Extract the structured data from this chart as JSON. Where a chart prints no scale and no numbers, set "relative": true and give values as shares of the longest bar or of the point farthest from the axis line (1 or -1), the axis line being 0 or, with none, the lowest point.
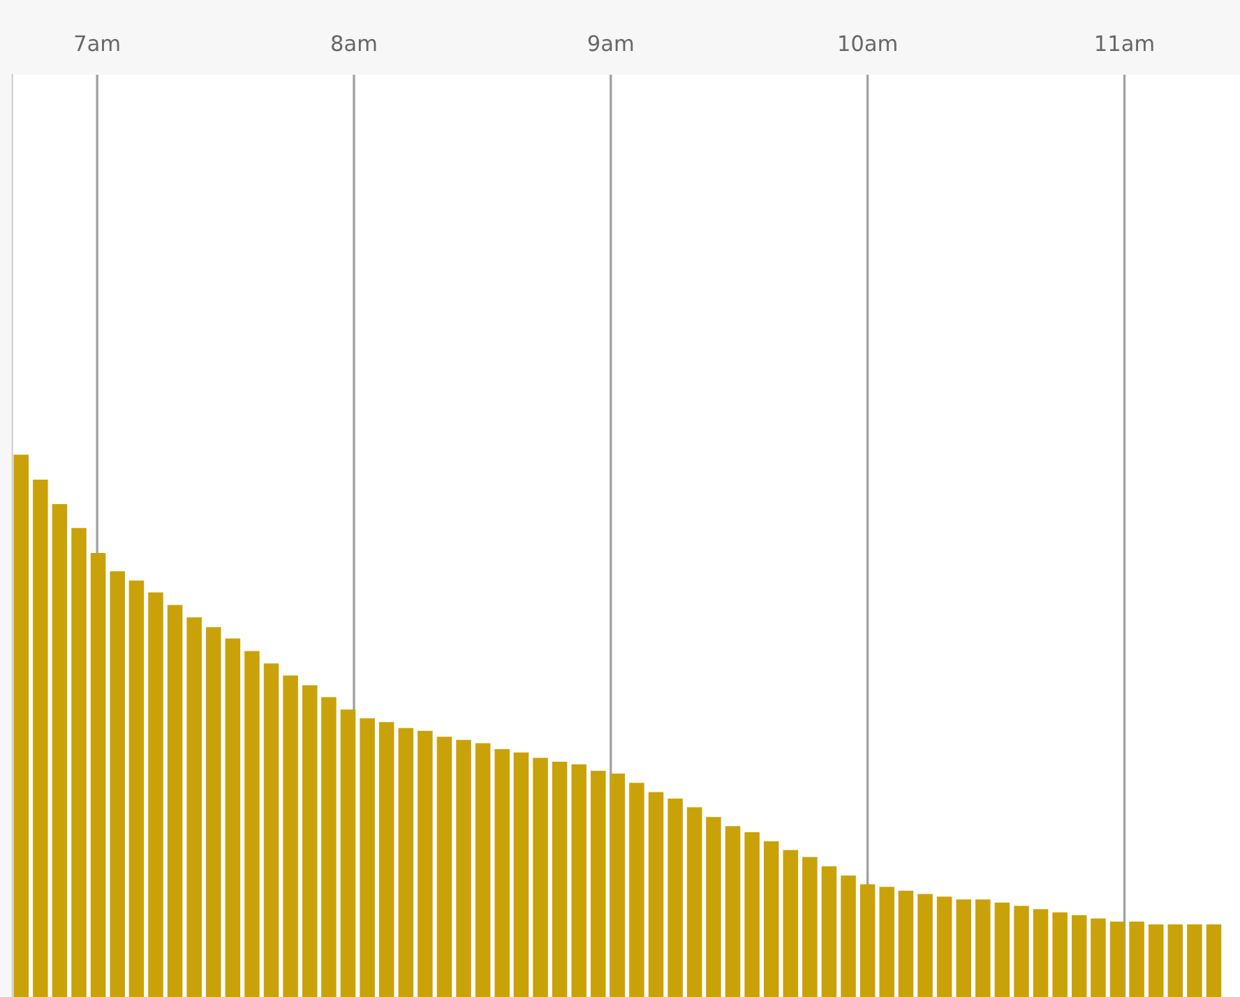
{
  "chart_data": {
    "type": "bar",
    "relative": true,
    "color": "#c9a20a",
    "x": [
      6.704,
      6.779,
      6.854,
      6.929,
      7.004,
      7.079,
      7.153,
      7.228,
      7.303,
      7.378,
      7.453,
      7.528,
      7.603,
      7.678,
      7.753,
      7.828,
      7.902,
      7.977,
      8.052,
      8.127,
      8.202,
      8.277,
      8.352,
      8.427,
      8.502,
      8.577,
      8.651,
      8.726,
      8.801,
      8.876,
      8.951,
      9.026,
      9.101,
      9.176,
      9.251,
      9.326,
      9.4,
      9.475,
      9.55,
      9.625,
      9.7,
      9.775,
      9.85,
      9.925,
      10.0,
      10.075,
      10.149,
      10.224,
      10.299,
      10.374,
      10.449,
      10.524,
      10.599,
      10.674,
      10.749,
      10.824,
      10.898,
      10.973,
      11.048,
      11.123,
      11.198,
      11.273,
      11.348
    ],
    "values": [
      1.0,
      0.954,
      0.909,
      0.865,
      0.819,
      0.785,
      0.768,
      0.746,
      0.723,
      0.7,
      0.682,
      0.661,
      0.638,
      0.615,
      0.593,
      0.575,
      0.553,
      0.53,
      0.514,
      0.507,
      0.496,
      0.491,
      0.48,
      0.474,
      0.468,
      0.457,
      0.451,
      0.441,
      0.434,
      0.429,
      0.417,
      0.412,
      0.395,
      0.378,
      0.366,
      0.35,
      0.332,
      0.315,
      0.304,
      0.287,
      0.271,
      0.258,
      0.241,
      0.224,
      0.208,
      0.203,
      0.196,
      0.19,
      0.185,
      0.18,
      0.18,
      0.174,
      0.168,
      0.162,
      0.156,
      0.151,
      0.145,
      0.139,
      0.139,
      0.134,
      0.134,
      0.134,
      0.134
    ],
    "xlim": [
      6.67,
      11.45
    ],
    "xticks": [
      {
        "value": 7,
        "label": "7am"
      },
      {
        "value": 8,
        "label": "8am"
      },
      {
        "value": 9,
        "label": "9am"
      },
      {
        "value": 10,
        "label": "10am"
      },
      {
        "value": 11,
        "label": "11am"
      }
    ],
    "grid": "x",
    "tick_labels": "x"
  }
}
